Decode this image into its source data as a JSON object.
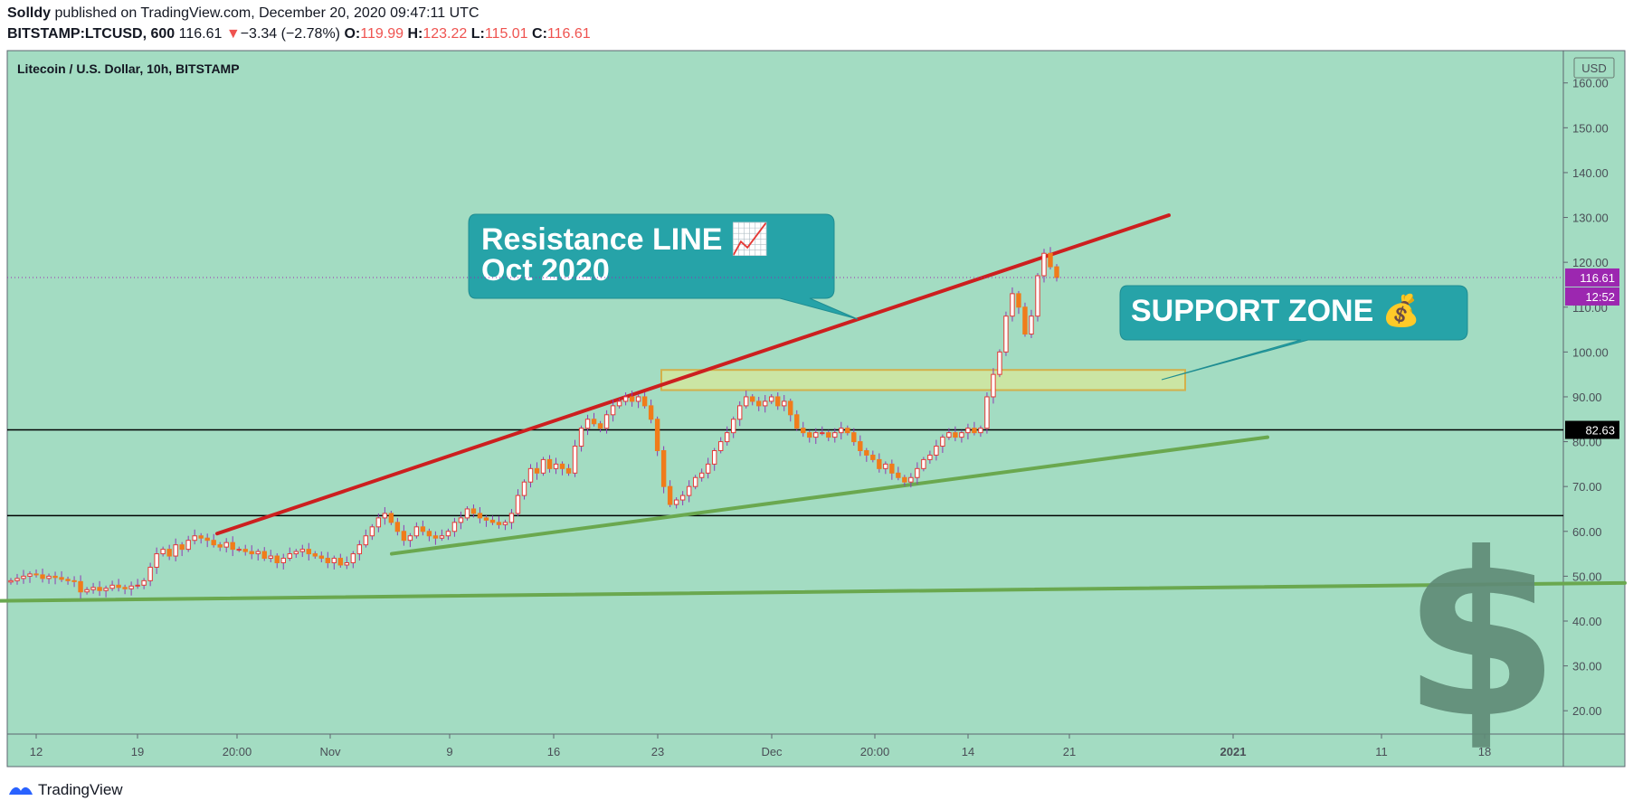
{
  "header": {
    "author": "Solldy",
    "published": "published on TradingView.com, December 20, 2020 09:47:11 UTC",
    "symbol": "BITSTAMP:LTCUSD, 600",
    "last": "116.61",
    "change": "−3.34 (−2.78%)",
    "o_label": "O:",
    "o": "119.99",
    "h_label": "H:",
    "h": "123.22",
    "l_label": "L:",
    "l": "115.01",
    "c_label": "C:",
    "c": "116.61"
  },
  "footer": {
    "brand": "TradingView"
  },
  "chart_data": {
    "type": "candlestick",
    "title": "Litecoin / U.S. Dollar, 10h, BITSTAMP",
    "currency": "USD",
    "ylim": [
      15,
      167
    ],
    "y_ticks": [
      "160.00",
      "150.00",
      "140.00",
      "130.00",
      "120.00",
      "110.00",
      "100.00",
      "90.00",
      "80.00",
      "70.00",
      "60.00",
      "50.00",
      "40.00",
      "30.00",
      "20.00"
    ],
    "x_ticks": [
      "12",
      "19",
      "20:00",
      "Nov",
      "9",
      "16",
      "23",
      "Dec",
      "20:00",
      "14",
      "21",
      "2021",
      "11",
      "18"
    ],
    "x_ticks_bold": [
      "2021"
    ],
    "price_labels": {
      "last": "116.61",
      "countdown": "12:52",
      "level": "82.63",
      "last_color": "#9c27b0",
      "level_color": "#000000"
    },
    "horizontal_lines": [
      82.63,
      63.5
    ],
    "annotations": [
      {
        "text_lines": [
          "Resistance LINE 📈",
          "Oct 2020"
        ],
        "color": "#26a3a8"
      },
      {
        "text_lines": [
          "SUPPORT ZONE 💰"
        ],
        "color": "#26a3a8"
      }
    ],
    "zone": {
      "y_low": 91.5,
      "y_high": 96,
      "color": "#d8e89a"
    },
    "trendlines": [
      {
        "name": "resistance",
        "color": "#cc1f1f",
        "y_start": 59.5,
        "y_end": 130.5
      },
      {
        "name": "support-upper",
        "color": "#6aa84f",
        "y_start": 55,
        "y_end": 81
      },
      {
        "name": "support-lower",
        "color": "#6aa84f",
        "y_start": 44.5,
        "y_end": 48.5
      }
    ],
    "candles_close": [
      49,
      49.5,
      50,
      50.5,
      50.3,
      49.5,
      50,
      49.7,
      49.3,
      49,
      48.8,
      46.5,
      47,
      47.5,
      46.8,
      47.3,
      48,
      47.5,
      47.2,
      47.8,
      48,
      49,
      52,
      55,
      56,
      54.5,
      57,
      56,
      58,
      59,
      58.5,
      58,
      57,
      56.5,
      57.5,
      56,
      56,
      55.5,
      55,
      55.5,
      54,
      54.5,
      53,
      54,
      55,
      55.5,
      56,
      55,
      54.5,
      54,
      53,
      54,
      52.5,
      53,
      55,
      57,
      59,
      61,
      63,
      64,
      62,
      60,
      58,
      59,
      61,
      60,
      59,
      58.5,
      59,
      60,
      62,
      63,
      65,
      64,
      63,
      62.5,
      62,
      61.5,
      62,
      64,
      68,
      71,
      74,
      73,
      76,
      74,
      75,
      74,
      73,
      79,
      83,
      85,
      84,
      83,
      86,
      88,
      89,
      90,
      89,
      90,
      88,
      85,
      78,
      70,
      66,
      67,
      68,
      70,
      72,
      73,
      75,
      78,
      80,
      82,
      85,
      88,
      90,
      89,
      88,
      89,
      90,
      88,
      89,
      86,
      83,
      82,
      81,
      82,
      82,
      81,
      82,
      83,
      82,
      80,
      78,
      77,
      76,
      74,
      75,
      73,
      72,
      71,
      72,
      74,
      76,
      77,
      79,
      81,
      82,
      81,
      82,
      83,
      82,
      83,
      90,
      95,
      100,
      108,
      113,
      110,
      104,
      108,
      117,
      122,
      119,
      116.61
    ],
    "watermark_icon": "dollar-icon"
  }
}
